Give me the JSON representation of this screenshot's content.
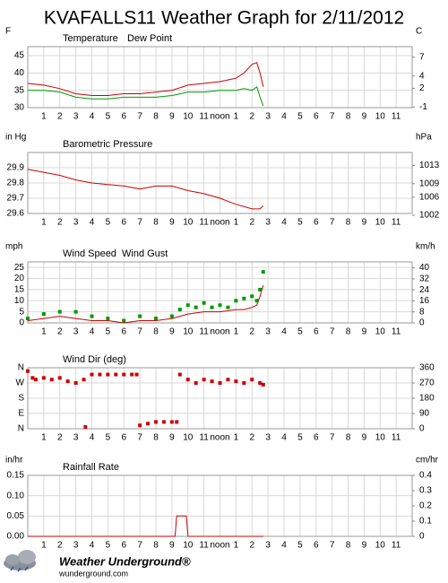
{
  "title": "KVAFALLS11 Weather Graph for 2/11/2012",
  "footer": {
    "brand": "Weather Underground®",
    "url": "wunderground.com"
  },
  "chart_data": [
    {
      "type": "line",
      "y_unit": "F",
      "y2_unit": "C",
      "xlim": [
        0,
        24
      ],
      "xticks": [
        1,
        2,
        3,
        4,
        5,
        6,
        7,
        8,
        9,
        10,
        11,
        {
          "value": 12,
          "label": "noon"
        },
        {
          "value": 13,
          "label": "1"
        },
        {
          "value": 14,
          "label": "2"
        },
        {
          "value": 15,
          "label": "3"
        },
        {
          "value": 16,
          "label": "4"
        },
        {
          "value": 17,
          "label": "5"
        },
        {
          "value": 18,
          "label": "6"
        },
        {
          "value": 19,
          "label": "7"
        },
        {
          "value": 20,
          "label": "8"
        },
        {
          "value": 21,
          "label": "9"
        },
        {
          "value": 22,
          "label": "10"
        },
        {
          "value": 23,
          "label": "11"
        }
      ],
      "ylim": [
        30,
        47.6
      ],
      "yticks": [
        30,
        35,
        40,
        45
      ],
      "y2lim": [
        -1.1,
        8.7
      ],
      "y2ticks": [
        -1,
        2,
        4,
        7
      ],
      "grid": true,
      "series": [
        {
          "name": "Temperature",
          "color": "#cc0000",
          "x": [
            0,
            1,
            2,
            3,
            4,
            5,
            6,
            7,
            8,
            9,
            10,
            11,
            12,
            13,
            13.5,
            14,
            14.3,
            14.5,
            14.7
          ],
          "values": [
            37,
            36.5,
            35.5,
            34,
            33.5,
            33.5,
            34,
            34,
            34.5,
            35,
            36.5,
            37,
            37.5,
            38.5,
            40,
            42.5,
            43,
            40,
            36
          ]
        },
        {
          "name": "Dew Point",
          "color": "#009900",
          "x": [
            0,
            1,
            2,
            3,
            4,
            5,
            6,
            7,
            8,
            9,
            10,
            11,
            12,
            13,
            13.5,
            14,
            14.3,
            14.5,
            14.7
          ],
          "values": [
            35,
            35,
            34.5,
            33,
            32.5,
            32.5,
            33,
            33,
            33,
            33.5,
            34.5,
            34.5,
            35,
            35,
            35.5,
            35,
            36,
            33,
            30.5
          ]
        }
      ]
    },
    {
      "type": "line",
      "y_unit": "in Hg",
      "y2_unit": "hPa",
      "xlim": [
        0,
        24
      ],
      "xticks": [
        1,
        2,
        3,
        4,
        5,
        6,
        7,
        8,
        9,
        10,
        11,
        {
          "value": 12,
          "label": "noon"
        },
        {
          "value": 13,
          "label": "1"
        },
        {
          "value": 14,
          "label": "2"
        },
        {
          "value": 15,
          "label": "3"
        },
        {
          "value": 16,
          "label": "4"
        },
        {
          "value": 17,
          "label": "5"
        },
        {
          "value": 18,
          "label": "6"
        },
        {
          "value": 19,
          "label": "7"
        },
        {
          "value": 20,
          "label": "8"
        },
        {
          "value": 21,
          "label": "9"
        },
        {
          "value": 22,
          "label": "10"
        },
        {
          "value": 23,
          "label": "11"
        }
      ],
      "ylim": [
        29.6,
        30.0
      ],
      "yticks": [
        29.6,
        29.7,
        29.8,
        29.9
      ],
      "y2lim": [
        1002.4,
        1015.9
      ],
      "y2ticks": [
        1002,
        1006,
        1009,
        1013
      ],
      "grid": true,
      "series": [
        {
          "name": "Barometric Pressure",
          "color": "#cc0000",
          "x": [
            0,
            1,
            2,
            3,
            4,
            5,
            6,
            7,
            8,
            9,
            10,
            11,
            12,
            13,
            14,
            14.5,
            14.7
          ],
          "values": [
            29.89,
            29.87,
            29.85,
            29.82,
            29.8,
            29.79,
            29.78,
            29.76,
            29.78,
            29.78,
            29.75,
            29.73,
            29.7,
            29.66,
            29.63,
            29.63,
            29.65
          ]
        }
      ]
    },
    {
      "type": "line",
      "y_unit": "mph",
      "y2_unit": "km/h",
      "xlim": [
        0,
        24
      ],
      "xticks": [
        1,
        2,
        3,
        4,
        5,
        6,
        7,
        8,
        9,
        10,
        11,
        {
          "value": 12,
          "label": "noon"
        },
        {
          "value": 13,
          "label": "1"
        },
        {
          "value": 14,
          "label": "2"
        },
        {
          "value": 15,
          "label": "3"
        },
        {
          "value": 16,
          "label": "4"
        },
        {
          "value": 17,
          "label": "5"
        },
        {
          "value": 18,
          "label": "6"
        },
        {
          "value": 19,
          "label": "7"
        },
        {
          "value": 20,
          "label": "8"
        },
        {
          "value": 21,
          "label": "9"
        },
        {
          "value": 22,
          "label": "10"
        },
        {
          "value": 23,
          "label": "11"
        }
      ],
      "ylim": [
        0,
        27.5
      ],
      "yticks": [
        0,
        5,
        10,
        15,
        20,
        25
      ],
      "y2lim": [
        0,
        44.3
      ],
      "y2ticks": [
        0,
        8,
        16,
        24,
        32,
        40
      ],
      "grid": true,
      "series": [
        {
          "name": "Wind Speed",
          "color": "#cc0000",
          "x": [
            0,
            1,
            2,
            3,
            4,
            5,
            6,
            7,
            8,
            9,
            10,
            11,
            12,
            13,
            13.5,
            14,
            14.3,
            14.5,
            14.7
          ],
          "values": [
            1,
            2,
            3,
            2,
            1,
            1,
            0,
            1,
            1,
            2,
            4,
            5,
            5,
            6,
            6,
            7,
            8,
            12,
            17
          ]
        },
        {
          "name": "Wind Gust",
          "color": "#009900",
          "mode": "markers",
          "x": [
            0,
            1,
            2,
            3,
            4,
            5,
            6,
            7,
            8,
            9,
            9.5,
            10,
            10.5,
            11,
            11.5,
            12,
            12.5,
            13,
            13.5,
            14,
            14.3,
            14.5,
            14.7
          ],
          "values": [
            2,
            4,
            5,
            5,
            3,
            2,
            1,
            3,
            2,
            3,
            6,
            8,
            7,
            9,
            7,
            8,
            7,
            10,
            11,
            12,
            10,
            15,
            23
          ]
        }
      ]
    },
    {
      "type": "scatter",
      "xlim": [
        0,
        24
      ],
      "xticks": [
        1,
        2,
        3,
        4,
        5,
        6,
        7,
        8,
        9,
        10,
        11,
        {
          "value": 12,
          "label": "noon"
        },
        {
          "value": 13,
          "label": "1"
        },
        {
          "value": 14,
          "label": "2"
        },
        {
          "value": 15,
          "label": "3"
        },
        {
          "value": 16,
          "label": "4"
        },
        {
          "value": 17,
          "label": "5"
        },
        {
          "value": 18,
          "label": "6"
        },
        {
          "value": 19,
          "label": "7"
        },
        {
          "value": 20,
          "label": "8"
        },
        {
          "value": 21,
          "label": "9"
        },
        {
          "value": 22,
          "label": "10"
        },
        {
          "value": 23,
          "label": "11"
        }
      ],
      "ylim": [
        0,
        360
      ],
      "yticks": [
        {
          "value": 0,
          "label": "N"
        },
        {
          "value": 90,
          "label": "E"
        },
        {
          "value": 180,
          "label": "S"
        },
        {
          "value": 270,
          "label": "W"
        },
        {
          "value": 360,
          "label": "N"
        }
      ],
      "y2lim": [
        0,
        360
      ],
      "y2ticks": [
        0,
        90,
        180,
        270,
        360
      ],
      "grid": true,
      "series": [
        {
          "name": "Wind Dir (deg)",
          "color": "#cc0000",
          "x": [
            0,
            0.3,
            0.5,
            1,
            1.5,
            2,
            2.5,
            3,
            3.5,
            3.6,
            4,
            4.5,
            5,
            5.5,
            6,
            6.5,
            6.8,
            7,
            7.5,
            8,
            8.5,
            9,
            9.3,
            9.5,
            10,
            10.5,
            11,
            11.5,
            12,
            12.5,
            13,
            13.5,
            14,
            14.5,
            14.7
          ],
          "values": [
            340,
            300,
            290,
            300,
            290,
            300,
            280,
            270,
            290,
            10,
            320,
            320,
            320,
            320,
            320,
            320,
            320,
            20,
            30,
            40,
            40,
            40,
            40,
            320,
            290,
            270,
            290,
            280,
            270,
            290,
            280,
            270,
            290,
            270,
            260
          ]
        }
      ]
    },
    {
      "type": "line",
      "y_unit": "in/hr",
      "y2_unit": "cm/hr",
      "xlim": [
        0,
        24
      ],
      "xticks": [
        1,
        2,
        3,
        4,
        5,
        6,
        7,
        8,
        9,
        10,
        11,
        {
          "value": 12,
          "label": "noon"
        },
        {
          "value": 13,
          "label": "1"
        },
        {
          "value": 14,
          "label": "2"
        },
        {
          "value": 15,
          "label": "3"
        },
        {
          "value": 16,
          "label": "4"
        },
        {
          "value": 17,
          "label": "5"
        },
        {
          "value": 18,
          "label": "6"
        },
        {
          "value": 19,
          "label": "7"
        },
        {
          "value": 20,
          "label": "8"
        },
        {
          "value": 21,
          "label": "9"
        },
        {
          "value": 22,
          "label": "10"
        },
        {
          "value": 23,
          "label": "11"
        }
      ],
      "ylim": [
        0,
        0.15
      ],
      "yticks": [
        {
          "value": 0,
          "label": "0.00"
        },
        {
          "value": 0.05,
          "label": "0.05"
        },
        {
          "value": 0.1,
          "label": "0.10"
        },
        {
          "value": 0.15,
          "label": "0.15"
        }
      ],
      "y2lim": [
        0,
        0.4
      ],
      "y2ticks": [
        0,
        0.1,
        0.2,
        0.3,
        0.4
      ],
      "grid": true,
      "series": [
        {
          "name": "Rainfall Rate",
          "color": "#cc0000",
          "x": [
            0,
            9,
            9.2,
            9.3,
            9.9,
            10,
            14.7
          ],
          "values": [
            0,
            0,
            0,
            0.05,
            0.05,
            0,
            0
          ]
        }
      ]
    }
  ]
}
